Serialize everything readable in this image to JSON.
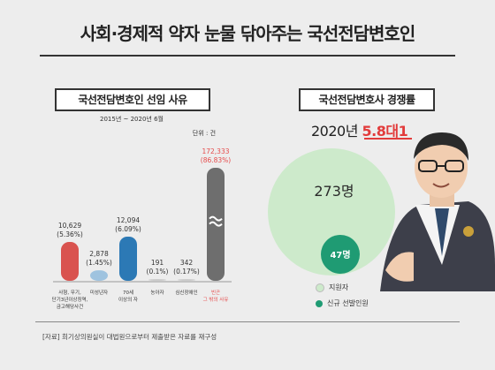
{
  "title": "사회·경제적 약자 눈물 닦아주는 국선전담변호인",
  "left_panel": {
    "heading": "국선전담변호인 선임 사유",
    "period": "2015년 ~ 2020년 6월",
    "unit": "단위 : 건"
  },
  "right_panel": {
    "heading": "국선전담변호사 경쟁률",
    "year_text": "2020년",
    "ratio_text": "5.8대1",
    "applicants_label": "273명",
    "selected_label": "47명",
    "legend": [
      {
        "label": "지원자",
        "color": "#cdeacb"
      },
      {
        "label": "신규 선발인원",
        "color": "#1f9b73"
      }
    ]
  },
  "source": "[자료] 희기상의원실이 대법원으로부터 제출받은 자료를 재구성",
  "chart_data": [
    {
      "type": "bar",
      "title": "국선전담변호인 선임 사유",
      "subtitle": "2015년 ~ 2020년 6월",
      "unit": "단위 : 건",
      "categories": [
        "사형, 무기, 단기3년이상징역, 금고해당사건",
        "미성년자",
        "70세 이상의 자",
        "농아자",
        "심신장애인",
        "빈곤 그 밖의 사유"
      ],
      "values": [
        10629,
        2878,
        12094,
        191,
        342,
        172333
      ],
      "value_labels": [
        "10,629",
        "2,878",
        "12,094",
        "191",
        "342",
        "172,333"
      ],
      "percent_labels": [
        "(5.36%)",
        "(1.45%)",
        "(6.09%)",
        "(0.1%)",
        "(0.17%)",
        "(86.83%)"
      ],
      "colors": [
        "#d9534f",
        "#9fc3df",
        "#2c79b5",
        "#cccccc",
        "#cccccc",
        "#6e6e6e"
      ],
      "axis_break": true,
      "grid": false
    },
    {
      "type": "bubble",
      "title": "국선전담변호사 경쟁률",
      "series": [
        {
          "name": "지원자",
          "values": [
            273
          ]
        },
        {
          "name": "신규 선발인원",
          "values": [
            47
          ]
        }
      ],
      "ratio": "5.8대1"
    }
  ]
}
